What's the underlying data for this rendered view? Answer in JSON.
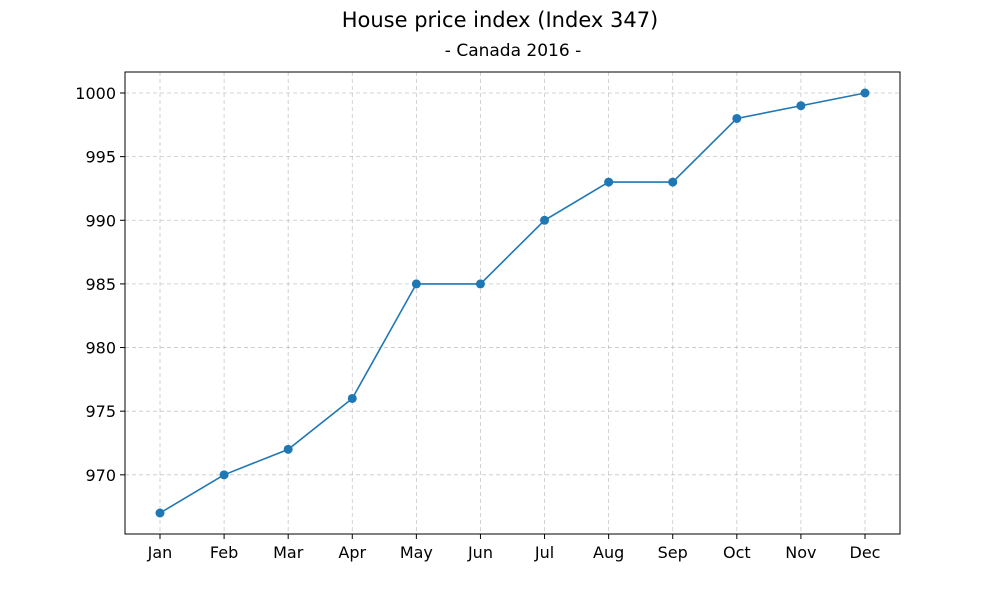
{
  "chart_data": {
    "type": "line",
    "title": "House price index (Index 347)",
    "subtitle": "- Canada 2016 -",
    "xlabel": "",
    "ylabel": "",
    "categories": [
      "Jan",
      "Feb",
      "Mar",
      "Apr",
      "May",
      "Jun",
      "Jul",
      "Aug",
      "Sep",
      "Oct",
      "Nov",
      "Dec"
    ],
    "series": [
      {
        "values": [
          967,
          970,
          972,
          976,
          985,
          985,
          990,
          993,
          993,
          998,
          999,
          1000
        ],
        "color": "#1f77b4",
        "marker": "circle"
      }
    ],
    "yticks": [
      970,
      975,
      980,
      985,
      990,
      995,
      1000
    ],
    "ylim": [
      965.35,
      1001.65
    ],
    "grid": true,
    "legend": "none"
  }
}
